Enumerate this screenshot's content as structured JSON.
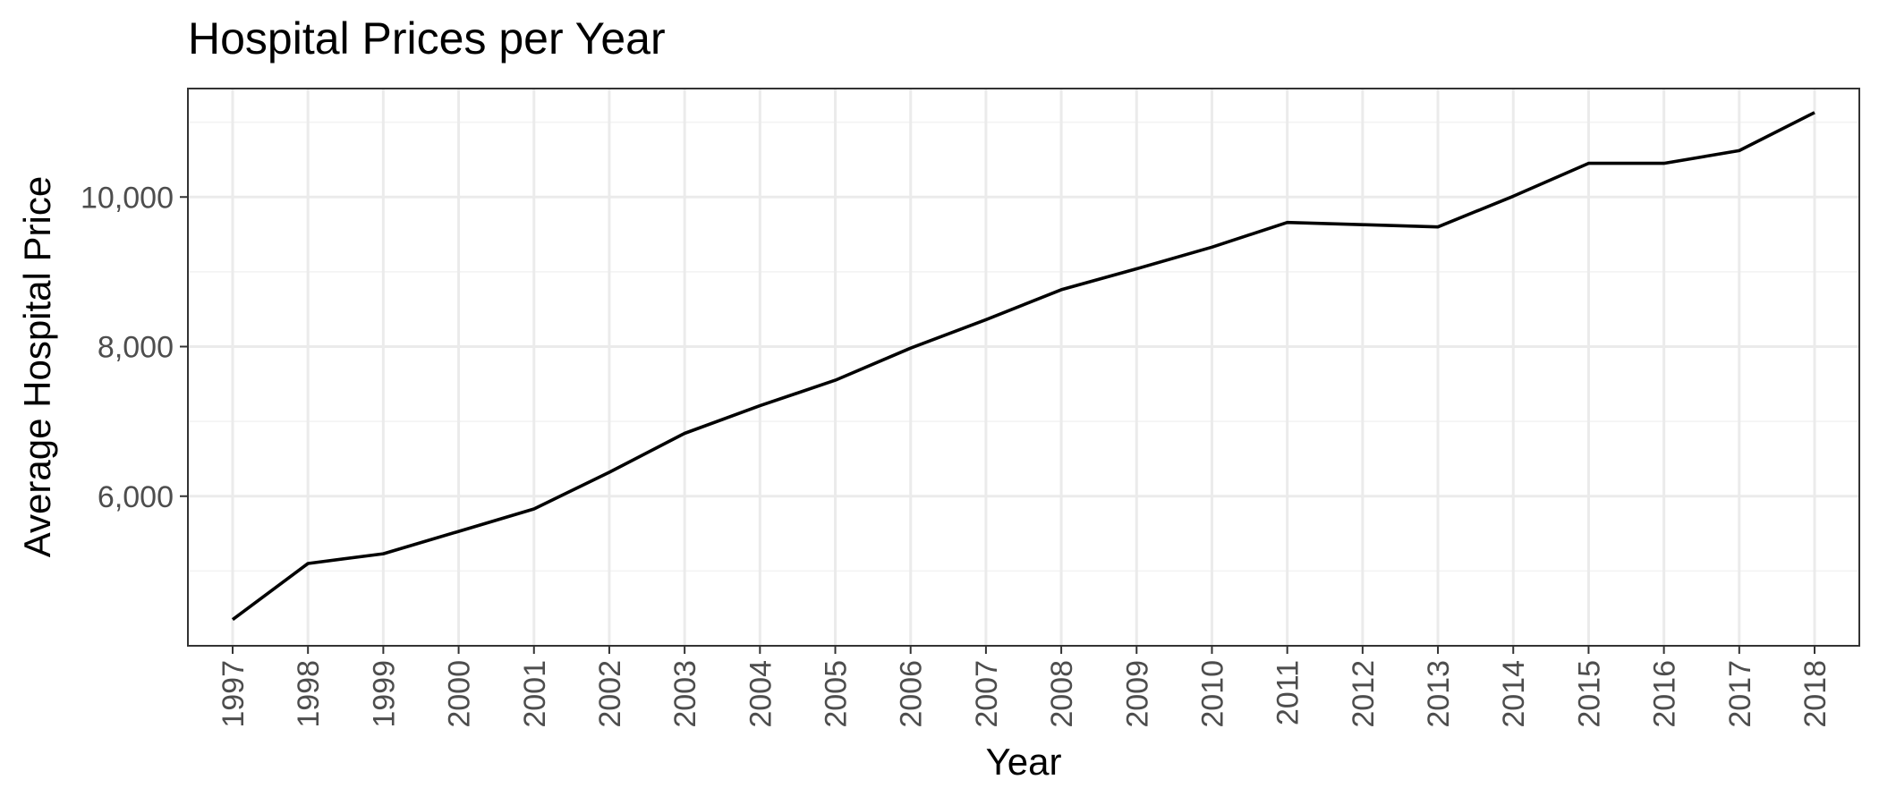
{
  "chart_data": {
    "type": "line",
    "title": "Hospital Prices per Year",
    "xlabel": "Year",
    "ylabel": "Average Hospital Price",
    "x": [
      "1997",
      "1998",
      "1999",
      "2000",
      "2001",
      "2002",
      "2003",
      "2004",
      "2005",
      "2006",
      "2007",
      "2008",
      "2009",
      "2010",
      "2011",
      "2012",
      "2013",
      "2014",
      "2015",
      "2016",
      "2017",
      "2018"
    ],
    "series": [
      {
        "values": [
          4350,
          5100,
          5230,
          5530,
          5830,
          6320,
          6840,
          7210,
          7550,
          7980,
          8360,
          8760,
          9040,
          9330,
          9660,
          9630,
          9600,
          10010,
          10450,
          10450,
          10620,
          11130
        ],
        "color": "#000000"
      }
    ],
    "ylim": [
      4000,
      11450
    ],
    "y_ticks": [
      6000,
      8000,
      10000
    ],
    "y_tick_labels": [
      "6,000",
      "8,000",
      "10,000"
    ],
    "y_minor_ticks": [
      5000,
      7000,
      9000,
      11000
    ],
    "grid": true,
    "x_tick_rotation": "vertical",
    "theme": "bw"
  }
}
